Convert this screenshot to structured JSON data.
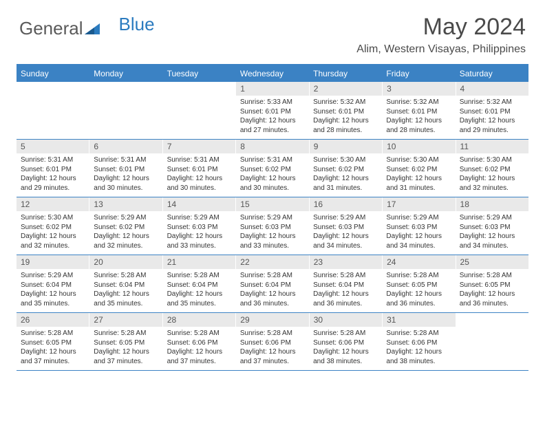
{
  "logo": {
    "part1": "General",
    "part2": "Blue"
  },
  "title": "May 2024",
  "location": "Alim, Western Visayas, Philippines",
  "colors": {
    "header_bg": "#3b82c4",
    "header_text": "#ffffff",
    "daynum_bg": "#e9e9e9",
    "text": "#333333",
    "logo_gray": "#5a5a5a",
    "logo_blue": "#2b7bbf"
  },
  "day_headers": [
    "Sunday",
    "Monday",
    "Tuesday",
    "Wednesday",
    "Thursday",
    "Friday",
    "Saturday"
  ],
  "weeks": [
    [
      {
        "num": "",
        "lines": []
      },
      {
        "num": "",
        "lines": []
      },
      {
        "num": "",
        "lines": []
      },
      {
        "num": "1",
        "lines": [
          "Sunrise: 5:33 AM",
          "Sunset: 6:01 PM",
          "Daylight: 12 hours",
          "and 27 minutes."
        ]
      },
      {
        "num": "2",
        "lines": [
          "Sunrise: 5:32 AM",
          "Sunset: 6:01 PM",
          "Daylight: 12 hours",
          "and 28 minutes."
        ]
      },
      {
        "num": "3",
        "lines": [
          "Sunrise: 5:32 AM",
          "Sunset: 6:01 PM",
          "Daylight: 12 hours",
          "and 28 minutes."
        ]
      },
      {
        "num": "4",
        "lines": [
          "Sunrise: 5:32 AM",
          "Sunset: 6:01 PM",
          "Daylight: 12 hours",
          "and 29 minutes."
        ]
      }
    ],
    [
      {
        "num": "5",
        "lines": [
          "Sunrise: 5:31 AM",
          "Sunset: 6:01 PM",
          "Daylight: 12 hours",
          "and 29 minutes."
        ]
      },
      {
        "num": "6",
        "lines": [
          "Sunrise: 5:31 AM",
          "Sunset: 6:01 PM",
          "Daylight: 12 hours",
          "and 30 minutes."
        ]
      },
      {
        "num": "7",
        "lines": [
          "Sunrise: 5:31 AM",
          "Sunset: 6:01 PM",
          "Daylight: 12 hours",
          "and 30 minutes."
        ]
      },
      {
        "num": "8",
        "lines": [
          "Sunrise: 5:31 AM",
          "Sunset: 6:02 PM",
          "Daylight: 12 hours",
          "and 30 minutes."
        ]
      },
      {
        "num": "9",
        "lines": [
          "Sunrise: 5:30 AM",
          "Sunset: 6:02 PM",
          "Daylight: 12 hours",
          "and 31 minutes."
        ]
      },
      {
        "num": "10",
        "lines": [
          "Sunrise: 5:30 AM",
          "Sunset: 6:02 PM",
          "Daylight: 12 hours",
          "and 31 minutes."
        ]
      },
      {
        "num": "11",
        "lines": [
          "Sunrise: 5:30 AM",
          "Sunset: 6:02 PM",
          "Daylight: 12 hours",
          "and 32 minutes."
        ]
      }
    ],
    [
      {
        "num": "12",
        "lines": [
          "Sunrise: 5:30 AM",
          "Sunset: 6:02 PM",
          "Daylight: 12 hours",
          "and 32 minutes."
        ]
      },
      {
        "num": "13",
        "lines": [
          "Sunrise: 5:29 AM",
          "Sunset: 6:02 PM",
          "Daylight: 12 hours",
          "and 32 minutes."
        ]
      },
      {
        "num": "14",
        "lines": [
          "Sunrise: 5:29 AM",
          "Sunset: 6:03 PM",
          "Daylight: 12 hours",
          "and 33 minutes."
        ]
      },
      {
        "num": "15",
        "lines": [
          "Sunrise: 5:29 AM",
          "Sunset: 6:03 PM",
          "Daylight: 12 hours",
          "and 33 minutes."
        ]
      },
      {
        "num": "16",
        "lines": [
          "Sunrise: 5:29 AM",
          "Sunset: 6:03 PM",
          "Daylight: 12 hours",
          "and 34 minutes."
        ]
      },
      {
        "num": "17",
        "lines": [
          "Sunrise: 5:29 AM",
          "Sunset: 6:03 PM",
          "Daylight: 12 hours",
          "and 34 minutes."
        ]
      },
      {
        "num": "18",
        "lines": [
          "Sunrise: 5:29 AM",
          "Sunset: 6:03 PM",
          "Daylight: 12 hours",
          "and 34 minutes."
        ]
      }
    ],
    [
      {
        "num": "19",
        "lines": [
          "Sunrise: 5:29 AM",
          "Sunset: 6:04 PM",
          "Daylight: 12 hours",
          "and 35 minutes."
        ]
      },
      {
        "num": "20",
        "lines": [
          "Sunrise: 5:28 AM",
          "Sunset: 6:04 PM",
          "Daylight: 12 hours",
          "and 35 minutes."
        ]
      },
      {
        "num": "21",
        "lines": [
          "Sunrise: 5:28 AM",
          "Sunset: 6:04 PM",
          "Daylight: 12 hours",
          "and 35 minutes."
        ]
      },
      {
        "num": "22",
        "lines": [
          "Sunrise: 5:28 AM",
          "Sunset: 6:04 PM",
          "Daylight: 12 hours",
          "and 36 minutes."
        ]
      },
      {
        "num": "23",
        "lines": [
          "Sunrise: 5:28 AM",
          "Sunset: 6:04 PM",
          "Daylight: 12 hours",
          "and 36 minutes."
        ]
      },
      {
        "num": "24",
        "lines": [
          "Sunrise: 5:28 AM",
          "Sunset: 6:05 PM",
          "Daylight: 12 hours",
          "and 36 minutes."
        ]
      },
      {
        "num": "25",
        "lines": [
          "Sunrise: 5:28 AM",
          "Sunset: 6:05 PM",
          "Daylight: 12 hours",
          "and 36 minutes."
        ]
      }
    ],
    [
      {
        "num": "26",
        "lines": [
          "Sunrise: 5:28 AM",
          "Sunset: 6:05 PM",
          "Daylight: 12 hours",
          "and 37 minutes."
        ]
      },
      {
        "num": "27",
        "lines": [
          "Sunrise: 5:28 AM",
          "Sunset: 6:05 PM",
          "Daylight: 12 hours",
          "and 37 minutes."
        ]
      },
      {
        "num": "28",
        "lines": [
          "Sunrise: 5:28 AM",
          "Sunset: 6:06 PM",
          "Daylight: 12 hours",
          "and 37 minutes."
        ]
      },
      {
        "num": "29",
        "lines": [
          "Sunrise: 5:28 AM",
          "Sunset: 6:06 PM",
          "Daylight: 12 hours",
          "and 37 minutes."
        ]
      },
      {
        "num": "30",
        "lines": [
          "Sunrise: 5:28 AM",
          "Sunset: 6:06 PM",
          "Daylight: 12 hours",
          "and 38 minutes."
        ]
      },
      {
        "num": "31",
        "lines": [
          "Sunrise: 5:28 AM",
          "Sunset: 6:06 PM",
          "Daylight: 12 hours",
          "and 38 minutes."
        ]
      },
      {
        "num": "",
        "lines": []
      }
    ]
  ]
}
